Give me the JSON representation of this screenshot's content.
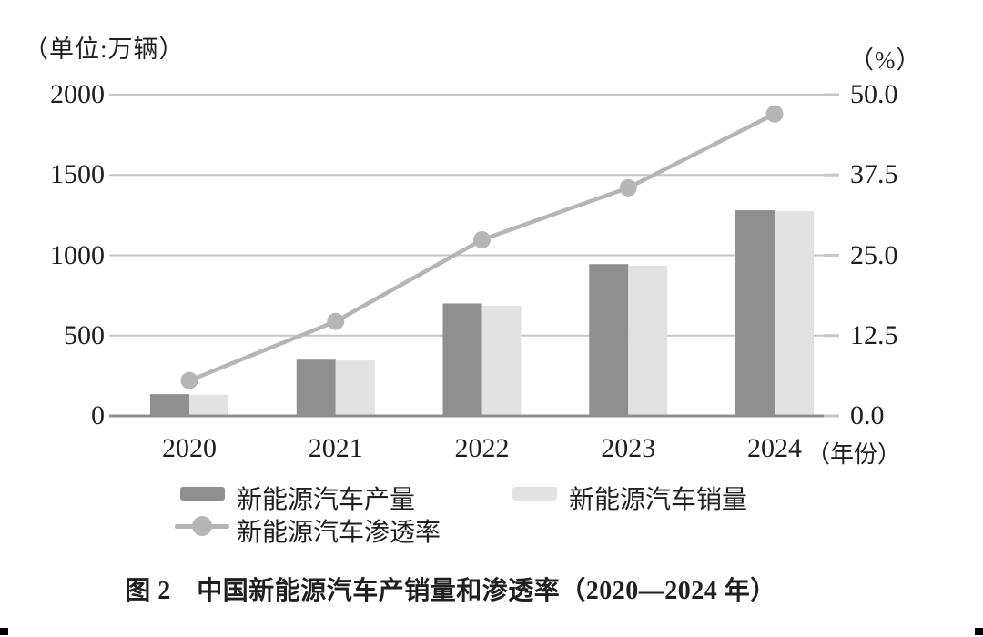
{
  "axes": {
    "left_unit_label": "（单位:万辆）",
    "right_unit_label": "（%）",
    "x_axis_suffix": "（年份）"
  },
  "legend": {
    "production": "新能源汽车产量",
    "sales": "新能源汽车销量",
    "penetration": "新能源汽车渗透率"
  },
  "caption": "图 2　中国新能源汽车产销量和渗透率（2020—2024 年）",
  "colors": {
    "production_bar": "#8f8f8f",
    "sales_bar": "#e2e2e2",
    "penetration_line": "#b5b5b5",
    "gridline": "#c6c6c6",
    "axis_line": "#8f8f8f",
    "text": "#1f1f1f"
  },
  "chart_data": {
    "type": "bar",
    "subtype": "grouped-bars-with-line",
    "title": "图 2 中国新能源汽车产销量和渗透率（2020—2024 年）",
    "categories": [
      "2020",
      "2021",
      "2022",
      "2023",
      "2024"
    ],
    "series": [
      {
        "name": "新能源汽车产量",
        "type": "bar",
        "axis": "left",
        "values": [
          135,
          350,
          700,
          945,
          1280
        ]
      },
      {
        "name": "新能源汽车销量",
        "type": "bar",
        "axis": "left",
        "values": [
          132,
          345,
          685,
          935,
          1275
        ]
      },
      {
        "name": "新能源汽车渗透率",
        "type": "line",
        "axis": "right",
        "values": [
          5.5,
          14.7,
          27.4,
          35.5,
          47.0
        ]
      }
    ],
    "xlabel": "年份",
    "ylabel_left": "万辆",
    "ylabel_right": "%",
    "y_left_ticks": [
      "0",
      "500",
      "1000",
      "1500",
      "2000"
    ],
    "y_left_tick_values": [
      0,
      500,
      1000,
      1500,
      2000
    ],
    "ylim_left": [
      0,
      2000
    ],
    "y_right_ticks": [
      "0.0",
      "12.5",
      "25.0",
      "37.5",
      "50.0"
    ],
    "y_right_tick_values": [
      0,
      12.5,
      25,
      37.5,
      50
    ],
    "ylim_right": [
      0,
      50
    ],
    "grid": true,
    "legend_position": "bottom"
  }
}
